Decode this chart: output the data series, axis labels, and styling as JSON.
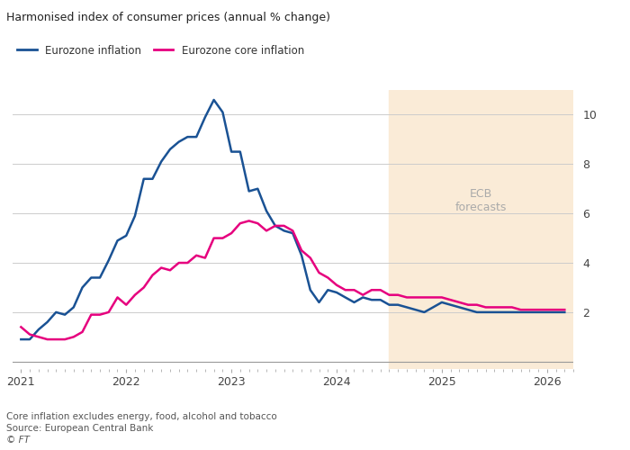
{
  "title": "Harmonised index of consumer prices (annual % change)",
  "footnote1": "Core inflation excludes energy, food, alcohol and tobacco",
  "footnote2": "Source: European Central Bank",
  "footnote3": "© FT",
  "legend": [
    "Eurozone inflation",
    "Eurozone core inflation"
  ],
  "line_colors": [
    "#1a5294",
    "#e6007e"
  ],
  "forecast_start": 2024.5,
  "forecast_color": "#faebd7",
  "forecast_label": "ECB\nforecasts",
  "ylim": [
    -0.3,
    11.0
  ],
  "yticks": [
    2,
    4,
    6,
    8,
    10
  ],
  "xlim_start": 2020.92,
  "xlim_end": 2026.25,
  "xtick_labels": [
    "2021",
    "2022",
    "2023",
    "2024",
    "2025",
    "2026"
  ],
  "xtick_positions": [
    2021,
    2022,
    2023,
    2024,
    2025,
    2026
  ],
  "eurozone_inflation": {
    "dates": [
      2021.0,
      2021.083,
      2021.167,
      2021.25,
      2021.333,
      2021.417,
      2021.5,
      2021.583,
      2021.667,
      2021.75,
      2021.833,
      2021.917,
      2022.0,
      2022.083,
      2022.167,
      2022.25,
      2022.333,
      2022.417,
      2022.5,
      2022.583,
      2022.667,
      2022.75,
      2022.833,
      2022.917,
      2023.0,
      2023.083,
      2023.167,
      2023.25,
      2023.333,
      2023.417,
      2023.5,
      2023.583,
      2023.667,
      2023.75,
      2023.833,
      2023.917,
      2024.0,
      2024.083,
      2024.167,
      2024.25,
      2024.333,
      2024.417,
      2024.5,
      2024.583,
      2024.667,
      2024.75,
      2024.833,
      2024.917,
      2025.0,
      2025.083,
      2025.167,
      2025.25,
      2025.333,
      2025.417,
      2025.5,
      2025.583,
      2025.667,
      2025.75,
      2025.833,
      2025.917,
      2026.0,
      2026.083,
      2026.167
    ],
    "values": [
      0.9,
      0.9,
      1.3,
      1.6,
      2.0,
      1.9,
      2.2,
      3.0,
      3.4,
      3.4,
      4.1,
      4.9,
      5.1,
      5.9,
      7.4,
      7.4,
      8.1,
      8.6,
      8.9,
      9.1,
      9.1,
      9.9,
      10.6,
      10.1,
      8.5,
      8.5,
      6.9,
      7.0,
      6.1,
      5.5,
      5.3,
      5.2,
      4.3,
      2.9,
      2.4,
      2.9,
      2.8,
      2.6,
      2.4,
      2.6,
      2.5,
      2.5,
      2.3,
      2.3,
      2.2,
      2.1,
      2.0,
      2.2,
      2.4,
      2.3,
      2.2,
      2.1,
      2.0,
      2.0,
      2.0,
      2.0,
      2.0,
      2.0,
      2.0,
      2.0,
      2.0,
      2.0,
      2.0
    ]
  },
  "eurozone_core_inflation": {
    "dates": [
      2021.0,
      2021.083,
      2021.167,
      2021.25,
      2021.333,
      2021.417,
      2021.5,
      2021.583,
      2021.667,
      2021.75,
      2021.833,
      2021.917,
      2022.0,
      2022.083,
      2022.167,
      2022.25,
      2022.333,
      2022.417,
      2022.5,
      2022.583,
      2022.667,
      2022.75,
      2022.833,
      2022.917,
      2023.0,
      2023.083,
      2023.167,
      2023.25,
      2023.333,
      2023.417,
      2023.5,
      2023.583,
      2023.667,
      2023.75,
      2023.833,
      2023.917,
      2024.0,
      2024.083,
      2024.167,
      2024.25,
      2024.333,
      2024.417,
      2024.5,
      2024.583,
      2024.667,
      2024.75,
      2024.833,
      2024.917,
      2025.0,
      2025.083,
      2025.167,
      2025.25,
      2025.333,
      2025.417,
      2025.5,
      2025.583,
      2025.667,
      2025.75,
      2025.833,
      2025.917,
      2026.0,
      2026.083,
      2026.167
    ],
    "values": [
      1.4,
      1.1,
      1.0,
      0.9,
      0.9,
      0.9,
      1.0,
      1.2,
      1.9,
      1.9,
      2.0,
      2.6,
      2.3,
      2.7,
      3.0,
      3.5,
      3.8,
      3.7,
      4.0,
      4.0,
      4.3,
      4.2,
      5.0,
      5.0,
      5.2,
      5.6,
      5.7,
      5.6,
      5.3,
      5.5,
      5.5,
      5.3,
      4.5,
      4.2,
      3.6,
      3.4,
      3.1,
      2.9,
      2.9,
      2.7,
      2.9,
      2.9,
      2.7,
      2.7,
      2.6,
      2.6,
      2.6,
      2.6,
      2.6,
      2.5,
      2.4,
      2.3,
      2.3,
      2.2,
      2.2,
      2.2,
      2.2,
      2.1,
      2.1,
      2.1,
      2.1,
      2.1,
      2.1
    ]
  }
}
